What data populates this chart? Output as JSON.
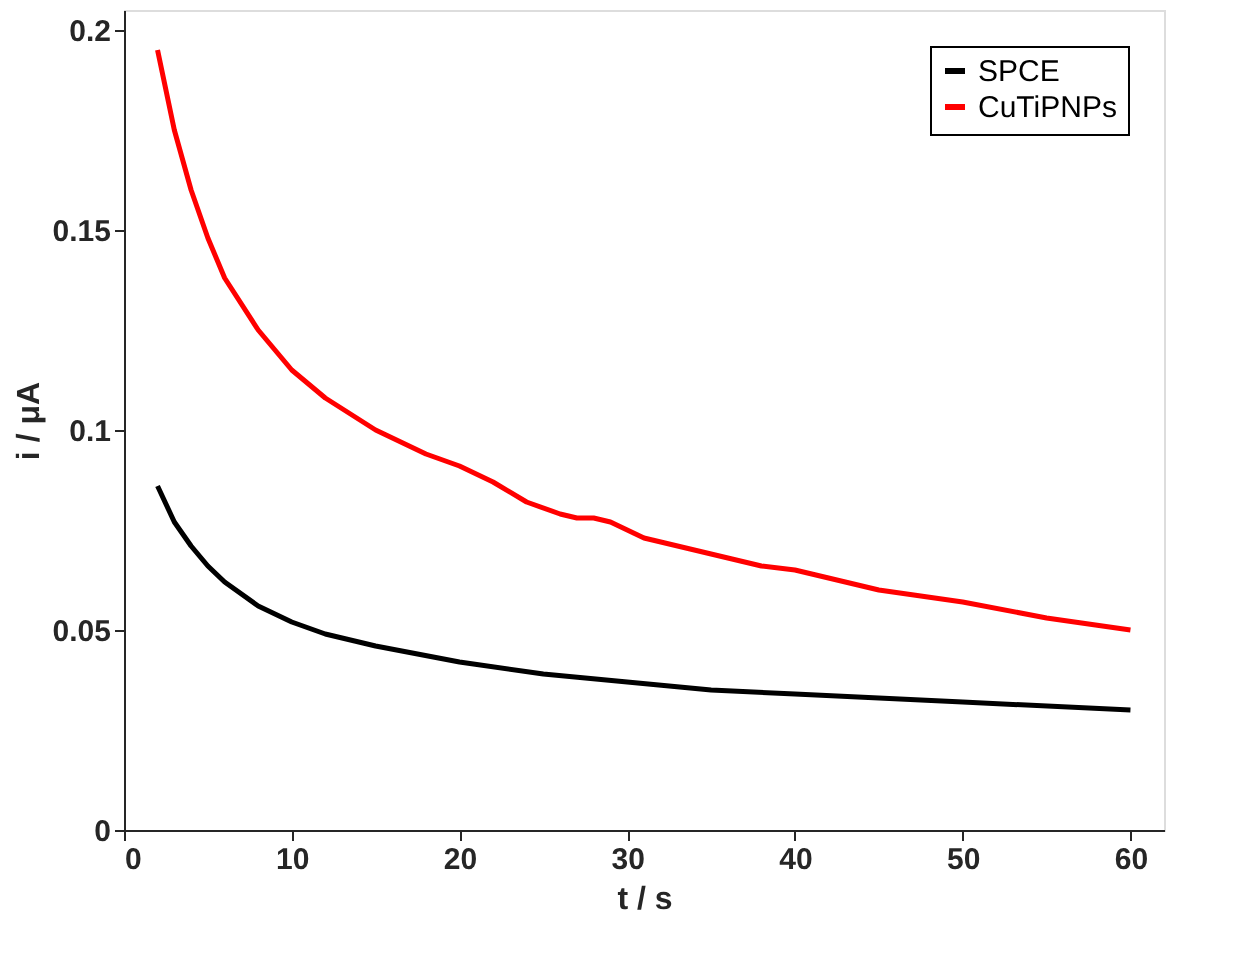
{
  "chart_data": {
    "type": "line",
    "xlabel": "t / s",
    "ylabel": "i / μA",
    "xlim": [
      0,
      62
    ],
    "ylim": [
      0,
      0.205
    ],
    "xticks": [
      0,
      10,
      20,
      30,
      40,
      50,
      60
    ],
    "yticks": [
      0,
      0.05,
      0.1,
      0.15,
      0.2
    ],
    "grid": false,
    "legend": "top right",
    "line_style": "solid",
    "marker": "none",
    "series": [
      {
        "name": "SPCE",
        "color": "#000000",
        "x": [
          2,
          3,
          4,
          5,
          6,
          8,
          10,
          12,
          15,
          20,
          25,
          30,
          35,
          40,
          50,
          60
        ],
        "values": [
          0.086,
          0.077,
          0.071,
          0.066,
          0.062,
          0.056,
          0.052,
          0.049,
          0.046,
          0.042,
          0.039,
          0.037,
          0.035,
          0.034,
          0.032,
          0.03
        ]
      },
      {
        "name": "CuTiPNPs",
        "color": "#ff0000",
        "x": [
          2,
          3,
          4,
          5,
          6,
          8,
          10,
          12,
          15,
          18,
          20,
          22,
          24,
          26,
          27,
          28,
          29,
          30,
          31,
          35,
          38,
          40,
          42,
          45,
          50,
          55,
          60
        ],
        "values": [
          0.195,
          0.175,
          0.16,
          0.148,
          0.138,
          0.125,
          0.115,
          0.108,
          0.1,
          0.094,
          0.091,
          0.087,
          0.082,
          0.079,
          0.078,
          0.078,
          0.077,
          0.075,
          0.073,
          0.069,
          0.066,
          0.065,
          0.063,
          0.06,
          0.057,
          0.053,
          0.05
        ]
      }
    ]
  }
}
